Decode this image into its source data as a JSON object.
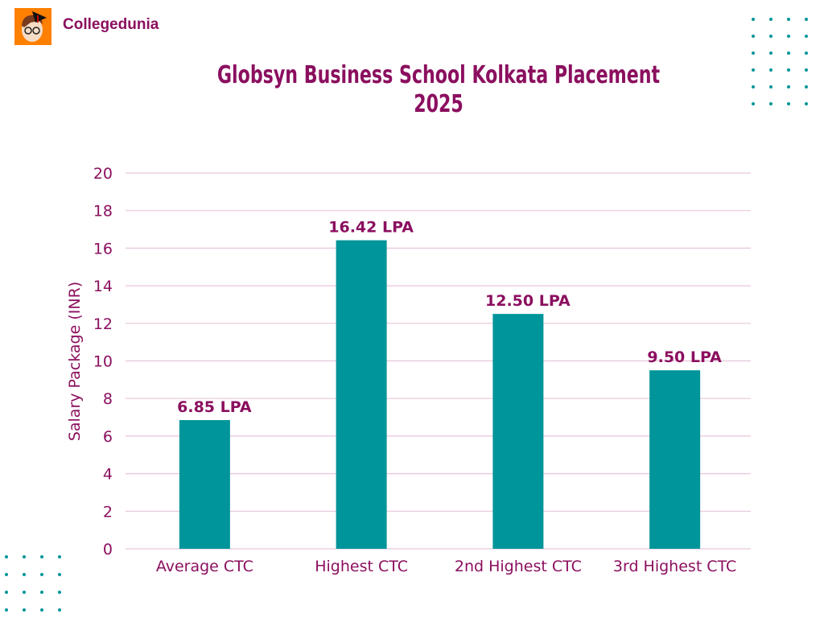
{
  "brand": {
    "name": "Collegedunia",
    "logo_icon": "student-avatar-icon"
  },
  "colors": {
    "title": "#8b0f5f",
    "bar": "#00959a",
    "grid": "#e8c6dc",
    "dots": "#00959a",
    "logo_bg": "#ff7f00"
  },
  "chart_data": {
    "type": "bar",
    "title": "Globsyn Business School Kolkata Placement 2025",
    "title_lines": [
      "Globsyn Business School Kolkata Placement",
      "2025"
    ],
    "categories": [
      "Average CTC",
      "Highest CTC",
      "2nd Highest CTC",
      "3rd Highest CTC"
    ],
    "values": [
      6.85,
      16.42,
      12.5,
      9.5
    ],
    "data_labels": [
      "6.85 LPA",
      "16.42 LPA",
      "12.50 LPA",
      "9.50 LPA"
    ],
    "xlabel": "",
    "ylabel": "Salary Package (INR)",
    "ylim": [
      0,
      20
    ],
    "yticks": [
      "0",
      "2",
      "4",
      "6",
      "8",
      "10",
      "12",
      "14",
      "16",
      "18",
      "20"
    ],
    "grid": true,
    "legend": "none"
  }
}
